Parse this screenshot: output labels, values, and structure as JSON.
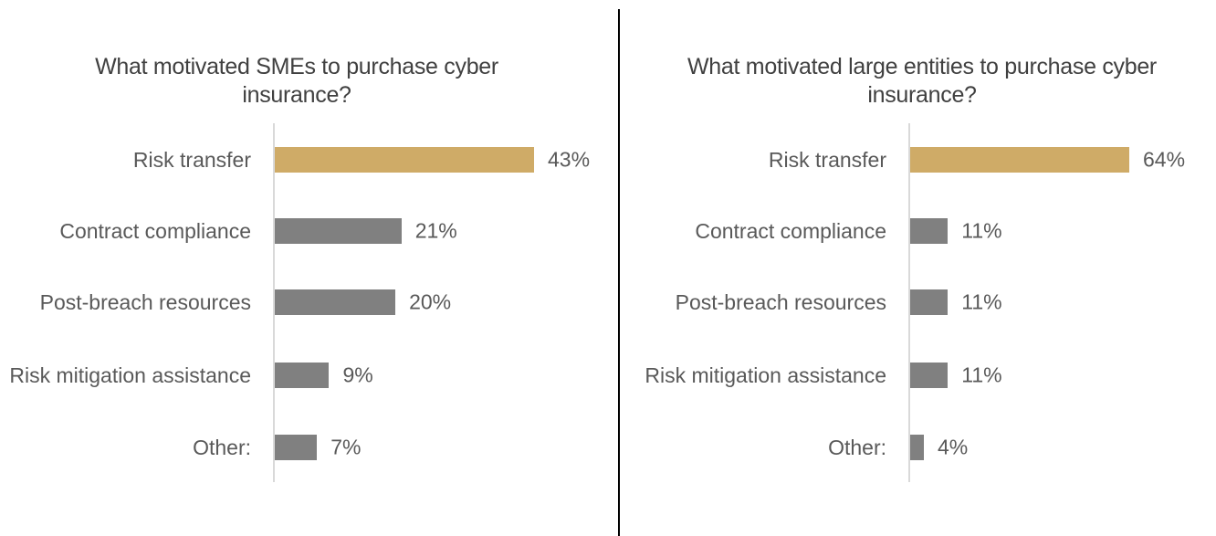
{
  "chart_data": [
    {
      "type": "bar",
      "orientation": "horizontal",
      "title": "What motivated SMEs to purchase cyber insurance?",
      "categories": [
        "Risk transfer",
        "Contract compliance",
        "Post-breach resources",
        "Risk mitigation assistance",
        "Other:"
      ],
      "values": [
        43,
        21,
        20,
        9,
        7
      ],
      "value_labels": [
        "43%",
        "21%",
        "20%",
        "9%",
        "7%"
      ],
      "colors": [
        "#cfab67",
        "#808080",
        "#808080",
        "#808080",
        "#808080"
      ]
    },
    {
      "type": "bar",
      "orientation": "horizontal",
      "title": "What motivated large entities to purchase cyber insurance?",
      "categories": [
        "Risk transfer",
        "Contract compliance",
        "Post-breach resources",
        "Risk mitigation assistance",
        "Other:"
      ],
      "values": [
        64,
        11,
        11,
        11,
        4
      ],
      "value_labels": [
        "64%",
        "11%",
        "11%",
        "11%",
        "4%"
      ],
      "colors": [
        "#cfab67",
        "#808080",
        "#808080",
        "#808080",
        "#808080"
      ]
    }
  ]
}
